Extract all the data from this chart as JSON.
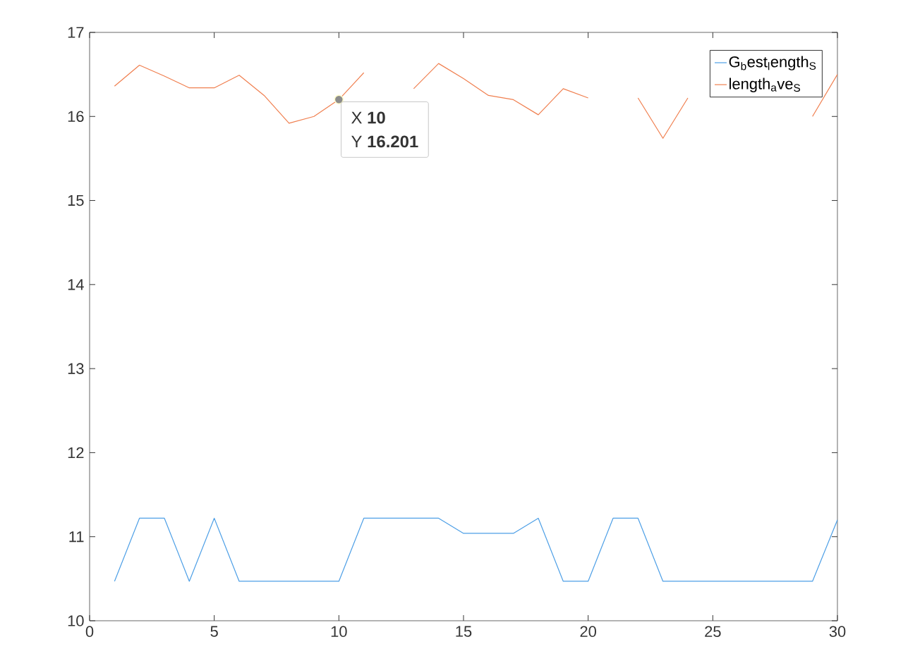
{
  "chart_data": {
    "type": "line",
    "x": [
      1,
      2,
      3,
      4,
      5,
      6,
      7,
      8,
      9,
      10,
      11,
      12,
      13,
      14,
      15,
      16,
      17,
      18,
      19,
      20,
      21,
      22,
      23,
      24,
      25,
      26,
      27,
      28,
      29,
      30
    ],
    "series": [
      {
        "name": "G$_{b}$est$_{l}$ength$_{S}$",
        "color": "#4d9fe6",
        "values": [
          10.47,
          11.22,
          11.22,
          10.47,
          11.22,
          10.47,
          10.47,
          10.47,
          10.47,
          10.47,
          11.22,
          11.22,
          11.22,
          11.22,
          11.04,
          11.04,
          11.04,
          11.22,
          10.47,
          10.47,
          11.22,
          11.22,
          10.47,
          10.47,
          10.47,
          10.47,
          10.47,
          10.47,
          10.47,
          11.2
        ]
      },
      {
        "name": "length$_{a}$ve$_{S}$",
        "color": "#f07f4f",
        "values": [
          16.36,
          16.61,
          16.48,
          16.34,
          16.34,
          16.49,
          16.25,
          15.92,
          16.0,
          16.201,
          16.52,
          null,
          16.33,
          16.63,
          16.45,
          16.25,
          16.2,
          16.02,
          16.33,
          16.22,
          null,
          16.22,
          15.74,
          16.22,
          null,
          null,
          null,
          null,
          16.0,
          16.5
        ]
      }
    ],
    "xlim": [
      0,
      30
    ],
    "xticks": [
      0,
      5,
      10,
      15,
      20,
      25,
      30
    ],
    "ylim": [
      10,
      17
    ],
    "yticks": [
      10,
      11,
      12,
      13,
      14,
      15,
      16,
      17
    ],
    "grid": false,
    "legend": "top right",
    "marker": "none",
    "line_style": "solid",
    "annotations": [
      {
        "text": "X **10**",
        "x": 10,
        "y": 16.201
      },
      "Y **16.201**"
    ]
  }
}
